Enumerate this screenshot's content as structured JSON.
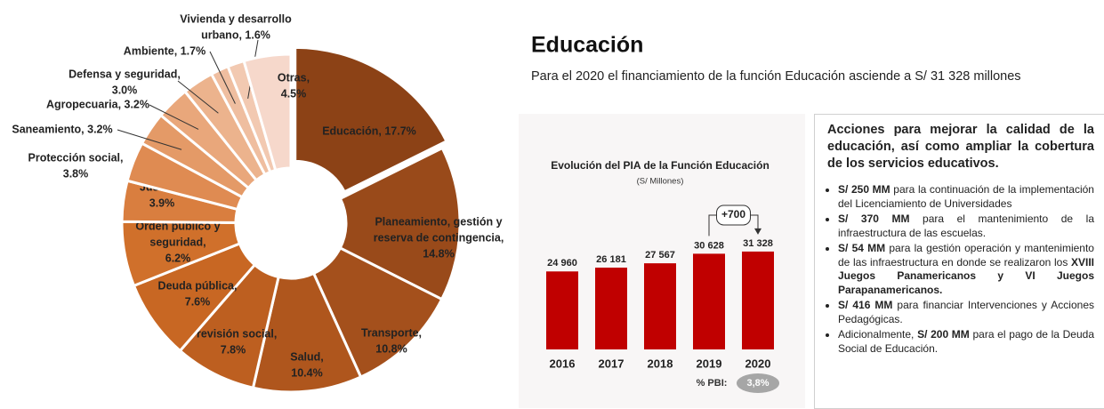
{
  "header": {
    "title": "Educación",
    "subtitle": "Para el 2020 el financiamiento de la función Educación asciende a S/ 31 328 millones"
  },
  "chart_data": [
    {
      "type": "donut",
      "values": [
        17.7,
        14.8,
        10.8,
        10.4,
        7.8,
        7.6,
        6.2,
        3.9,
        3.8,
        3.2,
        3.2,
        3.0,
        1.7,
        1.6,
        4.5
      ],
      "value_labels": [
        [
          "Educación, 17.7%"
        ],
        [
          "Planeamiento, gestión y",
          "reserva de contingencia,",
          "14.8%"
        ],
        [
          "Transporte,",
          "10.8%"
        ],
        [
          "Salud,",
          "10.4%"
        ],
        [
          "Previsión social,",
          "7.8%"
        ],
        [
          "Deuda pública,",
          "7.6%"
        ],
        [
          "Orden público y",
          "seguridad,",
          "6.2%"
        ],
        [
          "Justicia,",
          "3.9%"
        ],
        [
          "Protección social,",
          "3.8%"
        ],
        [
          "Saneamiento, 3.2%"
        ],
        [
          "Agropecuaria, 3.2%"
        ],
        [
          "Defensa y seguridad,",
          "3.0%"
        ],
        [
          "Ambiente, 1.7%"
        ],
        [
          "Vivienda y desarrollo",
          "urbano, 1.6%"
        ],
        [
          "Otras,",
          "4.5%"
        ]
      ],
      "colors": [
        "#8c4216",
        "#994a1a",
        "#a4501c",
        "#af561d",
        "#bd5f20",
        "#c86723",
        "#d0702b",
        "#d97e3f",
        "#df8b52",
        "#e49a67",
        "#e9a77b",
        "#ecb38d",
        "#efbea0",
        "#f2c9b1",
        "#f6d8cb"
      ]
    },
    {
      "type": "bar",
      "title": "Evolución del PIA de la Función Educación",
      "subtitle": "(S/ Millones)",
      "categories": [
        "2016",
        "2017",
        "2018",
        "2019",
        "2020"
      ],
      "values": [
        24960,
        26181,
        27567,
        30628,
        31328
      ],
      "value_labels": [
        "24 960",
        "26 181",
        "27 567",
        "30 628",
        "31 328"
      ],
      "color": "#c00000",
      "ylim": [
        0,
        35000
      ],
      "annotation": "+700",
      "footnote_label": "% PBI:",
      "footnote_value": "3,8%"
    }
  ],
  "actions": {
    "title": "Acciones para mejorar la calidad de la educación, así como ampliar la cobertura de los servicios educativos.",
    "bullets": [
      [
        {
          "text": "S/ 250 MM",
          "bold": true
        },
        {
          "text": " para la continuación de la implementación del Licenciamiento de Universidades"
        }
      ],
      [
        {
          "text": "S/ 370 MM",
          "bold": true
        },
        {
          "text": " para el mantenimiento de la infraestructura de las escuelas."
        }
      ],
      [
        {
          "text": "S/ 54 MM",
          "bold": true
        },
        {
          "text": " para la gestión operación y mantenimiento de las infraestructura en donde se realizaron los "
        },
        {
          "text": "XVIII Juegos Panamericanos y VI Juegos Parapanamericanos.",
          "bold": true
        }
      ],
      [
        {
          "text": "S/ 416 MM",
          "bold": true
        },
        {
          "text": " para financiar Intervenciones y Acciones Pedagógicas."
        }
      ],
      [
        {
          "text": "Adicionalmente, "
        },
        {
          "text": "S/ 200 MM",
          "bold": true
        },
        {
          "text": " para el pago de la Deuda Social de Educación."
        }
      ]
    ]
  }
}
